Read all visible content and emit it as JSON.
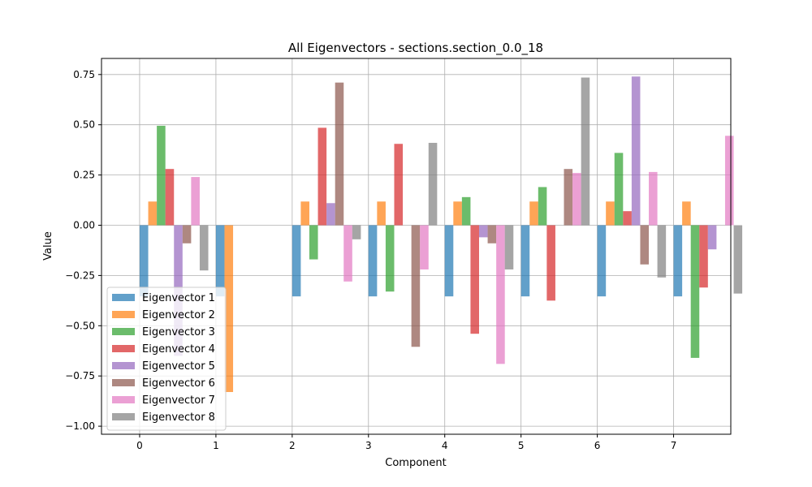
{
  "chart_data": {
    "type": "bar",
    "title": "All Eigenvectors - sections.section_0.0_18",
    "xlabel": "Component",
    "ylabel": "Value",
    "categories": [
      "0",
      "1",
      "2",
      "3",
      "4",
      "5",
      "6",
      "7"
    ],
    "ylim": [
      -1.04,
      0.83
    ],
    "yticks": [
      0.75,
      0.5,
      0.25,
      0.0,
      -0.25,
      -0.5,
      -0.75,
      -1.0
    ],
    "ytick_labels": [
      "0.75",
      "0.50",
      "0.25",
      "0.00",
      "−0.25",
      "−0.50",
      "−0.75",
      "−1.00"
    ],
    "grid": true,
    "legend_position": "lower-left",
    "bar_opacity": 0.7,
    "series": [
      {
        "name": "Eigenvector 1",
        "color": "#1f77b4",
        "values": [
          -0.354,
          -0.354,
          -0.354,
          -0.354,
          -0.354,
          -0.354,
          -0.354,
          -0.354
        ]
      },
      {
        "name": "Eigenvector 2",
        "color": "#ff7f0e",
        "values": [
          0.118,
          -0.83,
          0.118,
          0.118,
          0.118,
          0.118,
          0.118,
          0.118
        ]
      },
      {
        "name": "Eigenvector 3",
        "color": "#2ca02c",
        "values": [
          0.495,
          0.0,
          -0.17,
          -0.33,
          0.14,
          0.19,
          0.36,
          -0.66
        ]
      },
      {
        "name": "Eigenvector 4",
        "color": "#d62728",
        "values": [
          0.28,
          0.0,
          0.485,
          0.405,
          -0.54,
          -0.375,
          0.07,
          -0.31
        ]
      },
      {
        "name": "Eigenvector 5",
        "color": "#9467bd",
        "values": [
          -0.65,
          0.0,
          0.11,
          0.0,
          -0.06,
          0.0,
          0.74,
          -0.12
        ]
      },
      {
        "name": "Eigenvector 6",
        "color": "#8c564b",
        "values": [
          -0.09,
          0.0,
          0.71,
          -0.605,
          -0.09,
          0.28,
          -0.195,
          0.0
        ]
      },
      {
        "name": "Eigenvector 7",
        "color": "#e377c2",
        "values": [
          0.24,
          0.0,
          -0.28,
          -0.22,
          -0.69,
          0.26,
          0.265,
          0.445
        ]
      },
      {
        "name": "Eigenvector 8",
        "color": "#7f7f7f",
        "values": [
          -0.225,
          0.0,
          -0.07,
          0.41,
          -0.22,
          0.735,
          -0.26,
          -0.34
        ]
      }
    ]
  }
}
